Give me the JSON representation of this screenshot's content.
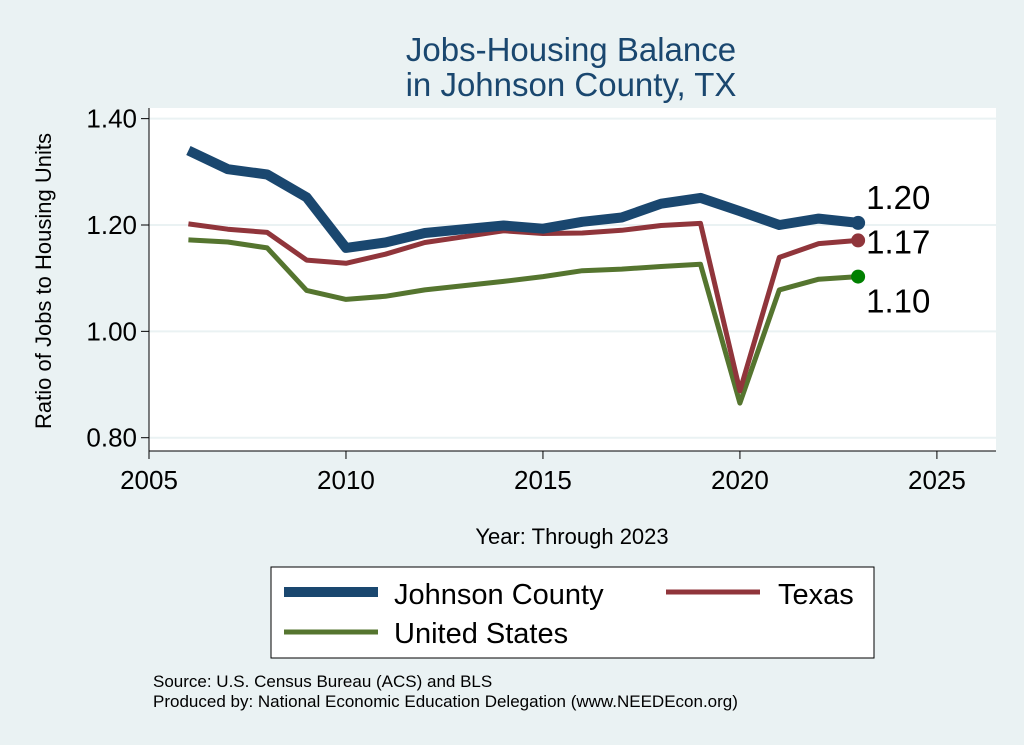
{
  "chart_data": {
    "type": "line",
    "title": [
      "Jobs-Housing Balance",
      "in Johnson County, TX"
    ],
    "xlabel": "Year: Through 2023",
    "ylabel": "Ratio of Jobs to Housing Units",
    "xlim": [
      2005,
      2026.5
    ],
    "ylim": [
      0.775,
      1.42
    ],
    "xticks": [
      2005,
      2010,
      2015,
      2020,
      2025
    ],
    "yticks": [
      0.8,
      1.0,
      1.2,
      1.4
    ],
    "ytick_labels": [
      "0.80",
      "1.00",
      "1.20",
      "1.40"
    ],
    "grid": true,
    "x": [
      2006,
      2007,
      2008,
      2009,
      2010,
      2011,
      2012,
      2013,
      2014,
      2015,
      2016,
      2017,
      2018,
      2019,
      2020,
      2021,
      2022,
      2023
    ],
    "series": [
      {
        "name": "Johnson County",
        "color": "#1a476f",
        "values": [
          1.34,
          1.305,
          1.295,
          1.252,
          1.157,
          1.167,
          1.185,
          1.192,
          1.199,
          1.193,
          1.206,
          1.214,
          1.24,
          1.251,
          1.226,
          1.2,
          1.212,
          1.204
        ],
        "end_label": "1.20"
      },
      {
        "name": "Texas",
        "color": "#90353b",
        "values": [
          1.202,
          1.192,
          1.186,
          1.134,
          1.128,
          1.145,
          1.167,
          1.178,
          1.189,
          1.184,
          1.185,
          1.19,
          1.199,
          1.203,
          0.888,
          1.139,
          1.165,
          1.171
        ],
        "end_label": "1.17"
      },
      {
        "name": "United States",
        "color": "#55752f",
        "values": [
          1.172,
          1.168,
          1.157,
          1.077,
          1.06,
          1.066,
          1.078,
          1.086,
          1.094,
          1.103,
          1.114,
          1.117,
          1.122,
          1.126,
          0.865,
          1.078,
          1.098,
          1.103
        ],
        "end_label": "1.10"
      }
    ],
    "legend": {
      "position": "bottom",
      "entries": [
        "Johnson County",
        "Texas",
        "United States"
      ]
    }
  },
  "source_line": "Source: U.S. Census Bureau (ACS) and BLS",
  "produced_line": "Produced by: National Economic Education Delegation (www.NEEDEcon.org)",
  "colors": {
    "background": "#eaf2f3",
    "plot_bg": "#ffffff",
    "grid": "#eaf2f3",
    "title": "#1a476f",
    "end_dot_johnson": "#1a476f",
    "end_dot_texas": "#90353b",
    "end_dot_us": "#008000"
  }
}
